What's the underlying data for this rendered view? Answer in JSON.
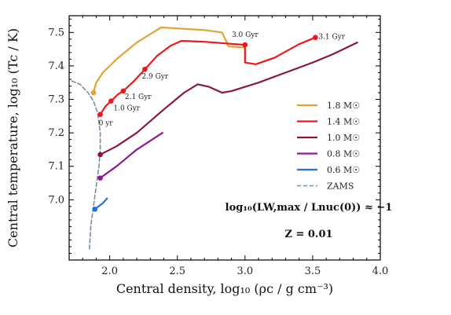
{
  "chart_data": {
    "type": "line",
    "xlabel": "Central density, log₁₀ (ρc / g cm⁻³)",
    "ylabel": "Central temperature, log₁₀ (Tc / K)",
    "xlim": [
      1.7,
      4.0
    ],
    "ylim": [
      6.82,
      7.55
    ],
    "x_ticks": [
      2.0,
      2.5,
      3.0,
      3.5,
      4.0
    ],
    "y_ticks": [
      7.0,
      7.1,
      7.2,
      7.3,
      7.4,
      7.5
    ],
    "grid": false,
    "legend_position": "center-right",
    "series": [
      {
        "name": "1.8 M☉",
        "color": "#dfa435",
        "dash": "solid",
        "points": [
          [
            1.88,
            7.32
          ],
          [
            1.9,
            7.35
          ],
          [
            1.95,
            7.38
          ],
          [
            2.05,
            7.42
          ],
          [
            2.2,
            7.47
          ],
          [
            2.38,
            7.515
          ],
          [
            2.5,
            7.512
          ],
          [
            2.7,
            7.507
          ],
          [
            2.83,
            7.5
          ],
          [
            2.88,
            7.458
          ],
          [
            2.96,
            7.456
          ],
          [
            3.0,
            7.456
          ]
        ]
      },
      {
        "name": "1.4 M☉",
        "color": "#f0171b",
        "dash": "solid",
        "points": [
          [
            1.93,
            7.255
          ],
          [
            1.97,
            7.28
          ],
          [
            2.01,
            7.295
          ],
          [
            2.06,
            7.315
          ],
          [
            2.1,
            7.325
          ],
          [
            2.18,
            7.355
          ],
          [
            2.26,
            7.39
          ],
          [
            2.35,
            7.43
          ],
          [
            2.45,
            7.46
          ],
          [
            2.53,
            7.475
          ],
          [
            2.7,
            7.472
          ],
          [
            2.9,
            7.466
          ],
          [
            3.0,
            7.463
          ],
          [
            3.0,
            7.41
          ],
          [
            3.08,
            7.405
          ],
          [
            3.22,
            7.425
          ],
          [
            3.4,
            7.465
          ],
          [
            3.52,
            7.485
          ]
        ]
      },
      {
        "name": "1.0 M☉",
        "color": "#8a1742",
        "dash": "solid",
        "points": [
          [
            1.93,
            7.135
          ],
          [
            2.05,
            7.16
          ],
          [
            2.2,
            7.2
          ],
          [
            2.4,
            7.27
          ],
          [
            2.55,
            7.32
          ],
          [
            2.65,
            7.345
          ],
          [
            2.73,
            7.338
          ],
          [
            2.83,
            7.32
          ],
          [
            2.9,
            7.325
          ],
          [
            3.1,
            7.35
          ],
          [
            3.3,
            7.38
          ],
          [
            3.5,
            7.41
          ],
          [
            3.65,
            7.435
          ],
          [
            3.83,
            7.47
          ]
        ]
      },
      {
        "name": "0.8 M☉",
        "color": "#8c1b8f",
        "dash": "solid",
        "points": [
          [
            1.93,
            7.065
          ],
          [
            2.05,
            7.1
          ],
          [
            2.2,
            7.15
          ],
          [
            2.39,
            7.2
          ]
        ]
      },
      {
        "name": "0.6 M☉",
        "color": "#1e6fe0",
        "dash": "solid",
        "points": [
          [
            1.89,
            6.972
          ],
          [
            1.95,
            6.99
          ],
          [
            1.98,
            7.004
          ]
        ]
      },
      {
        "name": "ZAMS",
        "color": "#7a8aa5",
        "dash": "dashed",
        "points": [
          [
            1.72,
            7.355
          ],
          [
            1.78,
            7.345
          ],
          [
            1.84,
            7.32
          ],
          [
            1.88,
            7.295
          ],
          [
            1.91,
            7.26
          ],
          [
            1.93,
            7.2
          ],
          [
            1.93,
            7.15
          ],
          [
            1.92,
            7.1
          ],
          [
            1.9,
            7.04
          ],
          [
            1.88,
            6.98
          ],
          [
            1.86,
            6.92
          ],
          [
            1.85,
            6.85
          ]
        ]
      }
    ],
    "markers": [
      {
        "series": "1.8 M☉",
        "x": 1.88,
        "y": 7.32,
        "color": "#dfa435",
        "label": ""
      },
      {
        "series": "1.4 M☉",
        "x": 1.93,
        "y": 7.255,
        "color": "#f0171b",
        "label": "0 yr"
      },
      {
        "series": "1.4 M☉",
        "x": 2.01,
        "y": 7.295,
        "color": "#f0171b",
        "label": "1.0 Gyr"
      },
      {
        "series": "1.4 M☉",
        "x": 2.1,
        "y": 7.325,
        "color": "#f0171b",
        "label": "2.1 Gyr"
      },
      {
        "series": "1.4 M☉",
        "x": 2.26,
        "y": 7.39,
        "color": "#f0171b",
        "label": "2.9 Gyr"
      },
      {
        "series": "1.4 M☉",
        "x": 3.0,
        "y": 7.463,
        "color": "#f0171b",
        "label": "3.0 Gyr"
      },
      {
        "series": "1.4 M☉",
        "x": 3.52,
        "y": 7.485,
        "color": "#f0171b",
        "label": "3.1 Gyr"
      },
      {
        "series": "1.0 M☉",
        "x": 1.93,
        "y": 7.135,
        "color": "#8a1742",
        "label": ""
      },
      {
        "series": "0.8 M☉",
        "x": 1.93,
        "y": 7.065,
        "color": "#8c1b8f",
        "label": ""
      },
      {
        "series": "0.6 M☉",
        "x": 1.89,
        "y": 6.972,
        "color": "#1e6fe0",
        "label": ""
      }
    ],
    "annotations": {
      "ratio_label": "log₁₀(LW,max / Lnuc(0)) ≈ −1",
      "metallicity_label": "Z = 0.01"
    }
  }
}
